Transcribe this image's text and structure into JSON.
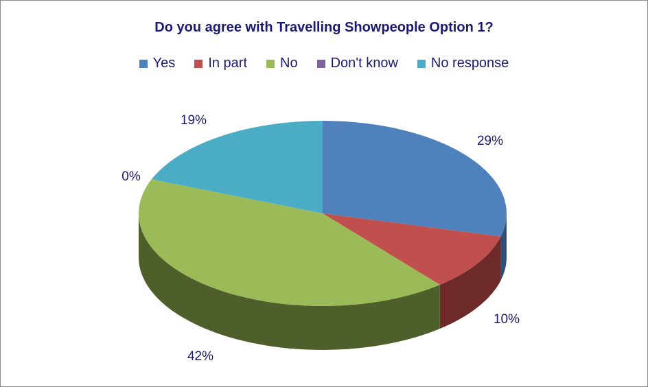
{
  "chart_data": {
    "type": "pie",
    "title": "Do you agree with Travelling Showpeople Option 1?",
    "legend_position": "top",
    "categories": [
      "Yes",
      "In part",
      "No",
      "Don't know",
      "No response"
    ],
    "values": [
      29,
      10,
      42,
      0,
      19
    ],
    "value_labels": [
      "29%",
      "10%",
      "42%",
      "0%",
      "19%"
    ],
    "colors": [
      "#4f81bd",
      "#c0504d",
      "#9bbb59",
      "#8064a2",
      "#4bacc6"
    ],
    "side_colors": [
      "#2f4f77",
      "#6e2a28",
      "#4e5f2b",
      "#48385e",
      "#2b6b7e"
    ]
  }
}
